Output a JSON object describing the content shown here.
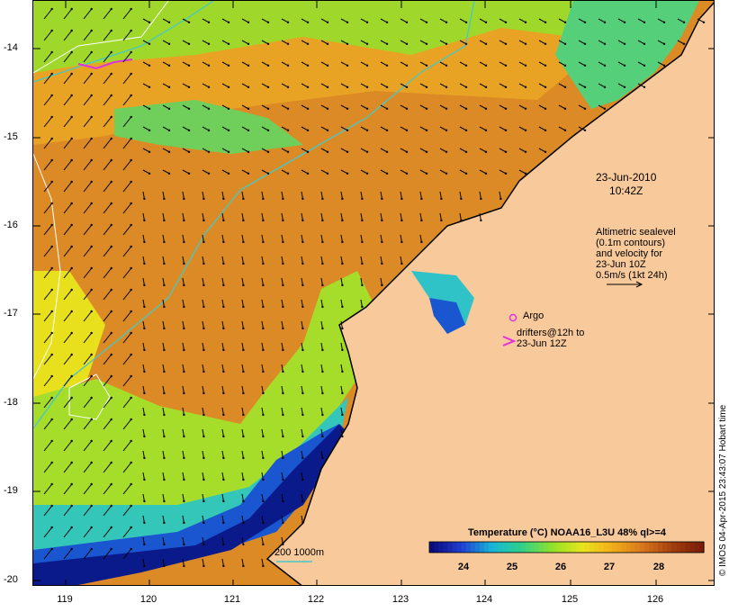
{
  "map": {
    "lat_ticks": [
      "-14",
      "-15",
      "-16",
      "-17",
      "-18",
      "-19",
      "-20"
    ],
    "lon_ticks": [
      "119",
      "120",
      "121",
      "122",
      "123",
      "124",
      "125",
      "126"
    ],
    "date_label": "23-Jun-2010",
    "time_label": "10:42Z",
    "altimetry_note": [
      "Altimetric sealevel",
      "(0.1m contours)",
      "and velocity for",
      "23-Jun 10Z",
      "0.5m/s (1kt 24h)"
    ],
    "argo_label": "Argo",
    "drifters_label": [
      "drifters@12h to",
      "23-Jun 12Z"
    ],
    "depth_label": "200  1000m",
    "credit": "© IMOS 04-Apr-2015 23:43:07 Hobart time",
    "colorbar": {
      "title": "Temperature (°C) NOAA16_L3U 48% ql>=4",
      "ticks": [
        "24",
        "25",
        "26",
        "27",
        "28"
      ],
      "colors": [
        "#0a0a7a",
        "#1f3fd0",
        "#19b4d8",
        "#2fd08a",
        "#8fe02a",
        "#e6e61c",
        "#f2b01a",
        "#d9781c",
        "#a4400f",
        "#7a1c08"
      ]
    },
    "colors": {
      "land": "#f8c99a",
      "warm_sea": "#dc8a25",
      "mid_sea": "#f0b020",
      "cool_sea": "#b9df2b",
      "cold_sea": "#2fc2c6",
      "coldest_sea": "#0a1a8a",
      "contour_depth": "#45c8c8",
      "argo": "#e030e0"
    }
  }
}
